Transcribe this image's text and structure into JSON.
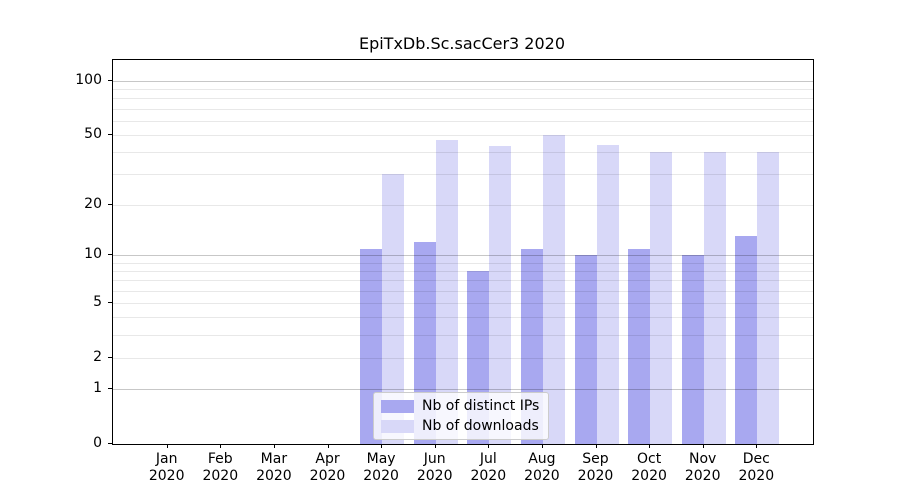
{
  "title": "EpiTxDb.Sc.sacCer3 2020",
  "chart_data": {
    "type": "bar",
    "title": "EpiTxDb.Sc.sacCer3 2020",
    "categories": [
      "Jan",
      "Feb",
      "Mar",
      "Apr",
      "May",
      "Jun",
      "Jul",
      "Aug",
      "Sep",
      "Oct",
      "Nov",
      "Dec"
    ],
    "category_year": "2020",
    "series": [
      {
        "name": "Nb of distinct IPs",
        "color": "#a8a8f0",
        "values": [
          0,
          0,
          0,
          0,
          11,
          12,
          8,
          11,
          10,
          11,
          10,
          13
        ]
      },
      {
        "name": "Nb of downloads",
        "color": "#d8d8f8",
        "values": [
          0,
          0,
          0,
          0,
          30,
          47,
          43,
          50,
          44,
          40,
          40,
          40
        ]
      }
    ],
    "xlabel": "",
    "ylabel": "",
    "y_scale": "log1p",
    "y_ticks": [
      100,
      50,
      20,
      10,
      5,
      2,
      1,
      0
    ],
    "y_minor_gridlines": [
      2,
      3,
      4,
      5,
      6,
      7,
      8,
      9,
      20,
      30,
      40,
      50,
      60,
      70,
      80,
      90
    ],
    "y_major_gridlines": [
      1,
      10,
      100
    ],
    "ylim": [
      0,
      131
    ],
    "grid": true,
    "legend_position": "bottom-center",
    "legend_labels": [
      "Nb of distinct IPs",
      "Nb of downloads"
    ]
  },
  "colors": {
    "distinct_ips_bar": "#a8a8f0",
    "downloads_bar": "#d8d8f8",
    "spine": "#000000",
    "gridline_minor": "#ebebeb",
    "gridline_major": "#c7c7c7",
    "legend_border": "#cccccc"
  }
}
